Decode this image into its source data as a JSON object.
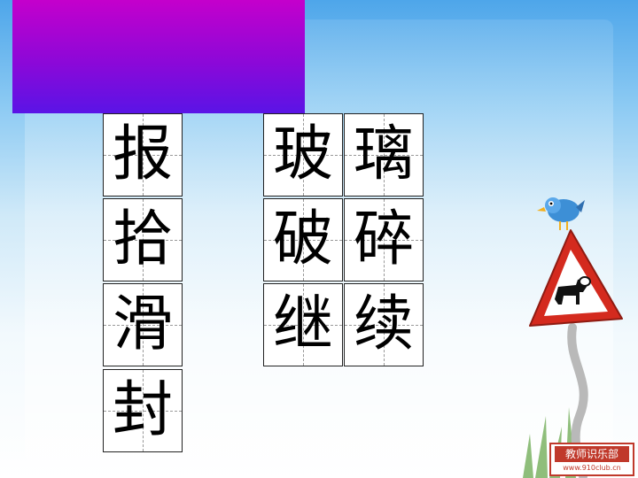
{
  "left_column": [
    "报",
    "拾",
    "滑",
    "封"
  ],
  "right_grid": [
    [
      "玻",
      "璃"
    ],
    [
      "破",
      "碎"
    ],
    [
      "继",
      "续"
    ]
  ],
  "logo": {
    "title": "教师识乐部",
    "url": "www.910club.cn"
  },
  "colors": {
    "banner_top": "#c400cc",
    "banner_bottom": "#5a14e6",
    "sky_top": "#4ea6ea",
    "sign_red": "#d42a1e"
  }
}
